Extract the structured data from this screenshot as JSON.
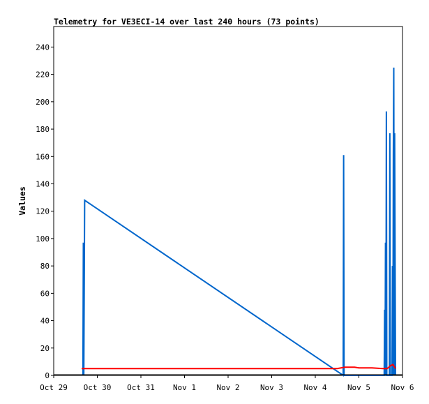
{
  "chart_data": {
    "type": "line",
    "title": "Telemetry for VE3ECI-14 over last 240 hours (73 points)",
    "ylabel": "Values",
    "xlabel": "",
    "ylim": [
      0,
      255
    ],
    "xlim": [
      0,
      8
    ],
    "y_ticks": [
      0,
      20,
      40,
      60,
      80,
      100,
      120,
      140,
      160,
      180,
      200,
      220,
      240
    ],
    "x_tick_labels": [
      "Oct 29",
      "Oct 30",
      "Oct 31",
      "Nov 1",
      "Nov 2",
      "Nov 3",
      "Nov 4",
      "Nov 5",
      "Nov 6"
    ],
    "x_tick_positions": [
      0,
      1,
      2,
      3,
      4,
      5,
      6,
      7,
      8
    ],
    "grid": false,
    "colors": {
      "series_blue": "#0066cc",
      "series_red": "#ff0000",
      "axis": "#000000"
    },
    "series": [
      {
        "color": "#0066cc",
        "x": [
          0.67,
          0.68,
          0.69,
          0.71,
          6.64,
          6.65,
          6.66,
          6.67,
          7.58,
          7.59,
          7.6,
          7.61,
          7.62,
          7.63,
          7.64,
          7.7,
          7.71,
          7.72,
          7.76,
          7.77,
          7.78,
          7.79,
          7.8,
          7.81,
          7.82,
          7.83,
          7.84
        ],
        "values": [
          0,
          97,
          0,
          128,
          0,
          161,
          0,
          0,
          0,
          48,
          0,
          97,
          0,
          193,
          0,
          0,
          177,
          0,
          0,
          80,
          0,
          161,
          225,
          0,
          177,
          89,
          0
        ]
      },
      {
        "color": "#ff0000",
        "x": [
          0.64,
          6.5,
          6.68,
          6.9,
          7.0,
          7.3,
          7.55,
          7.65,
          7.72,
          7.78,
          7.84
        ],
        "values": [
          5,
          5,
          6,
          6,
          5.5,
          5.5,
          5,
          5,
          7,
          8,
          5
        ]
      },
      {
        "color": "#000000",
        "x": [
          0,
          8
        ],
        "values": [
          0.4,
          0.4
        ]
      }
    ]
  }
}
